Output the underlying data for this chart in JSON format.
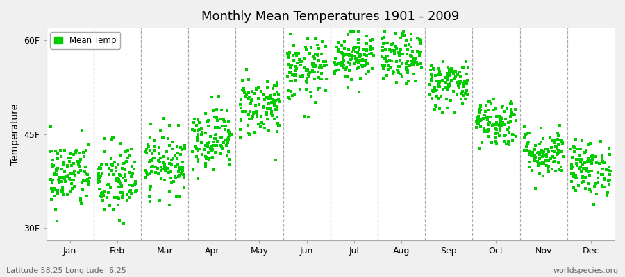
{
  "title": "Monthly Mean Temperatures 1901 - 2009",
  "ylabel": "Temperature",
  "xlabel_bottom_left": "Latitude 58.25 Longitude -6.25",
  "xlabel_bottom_right": "worldspecies.org",
  "ytick_labels": [
    "30F",
    "45F",
    "60F"
  ],
  "ytick_values": [
    30,
    45,
    60
  ],
  "ylim": [
    28,
    62
  ],
  "months": [
    "Jan",
    "Feb",
    "Mar",
    "Apr",
    "May",
    "Jun",
    "Jul",
    "Aug",
    "Sep",
    "Oct",
    "Nov",
    "Dec"
  ],
  "dot_color": "#00CC00",
  "figure_background": "#F0F0F0",
  "plot_background": "#FFFFFF",
  "legend_label": "Mean Temp",
  "n_years": 109,
  "monthly_mean_F": [
    38.5,
    37.5,
    40.5,
    44.5,
    49.5,
    55.0,
    57.5,
    57.0,
    53.0,
    47.0,
    42.0,
    39.5
  ],
  "monthly_std_F": [
    2.8,
    3.2,
    2.5,
    2.5,
    2.5,
    2.5,
    2.0,
    2.0,
    2.0,
    2.0,
    2.0,
    2.2
  ]
}
